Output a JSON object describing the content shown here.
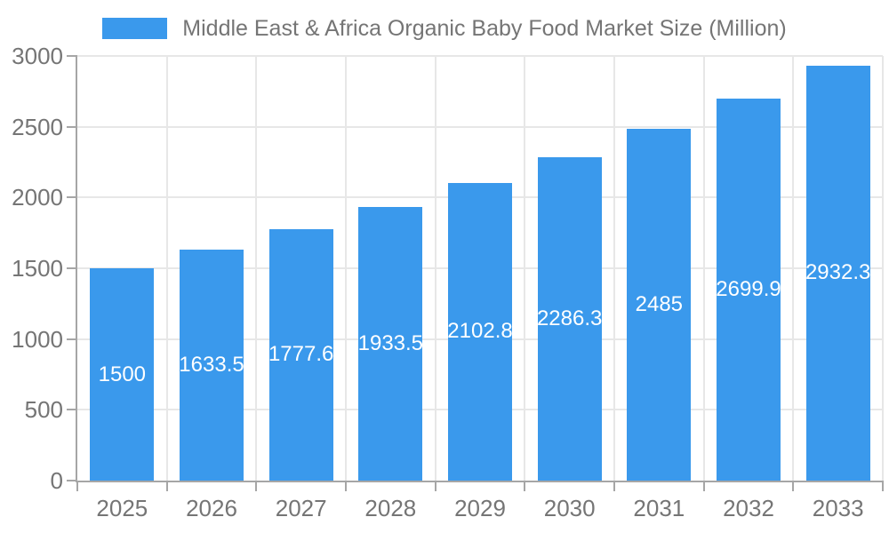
{
  "chart_data": {
    "type": "bar",
    "title": "Middle East & Africa Organic Baby Food Market Size (Million)",
    "legend": {
      "position": "top",
      "label": "Middle East & Africa Organic Baby Food Market Size (Million)"
    },
    "categories": [
      "2025",
      "2026",
      "2027",
      "2028",
      "2029",
      "2030",
      "2031",
      "2032",
      "2033"
    ],
    "values": [
      1500,
      1633.5,
      1777.6,
      1933.5,
      2102.8,
      2286.3,
      2485,
      2699.9,
      2932.3
    ],
    "xlabel": "",
    "ylabel": "",
    "ylim": [
      0,
      3000
    ],
    "y_ticks": [
      0,
      500,
      1000,
      1500,
      2000,
      2500,
      3000
    ],
    "grid": true,
    "data_labels_inside_bars": true,
    "colors": {
      "bar": "#3a99ec",
      "axis_text": "#757575",
      "legend_text": "#757575",
      "grid_line": "#e7e7e7",
      "axis_line": "#a6a6a6",
      "tick": "#a6a6a6",
      "value_label_text": "#ffffff",
      "background": "#ffffff"
    }
  }
}
